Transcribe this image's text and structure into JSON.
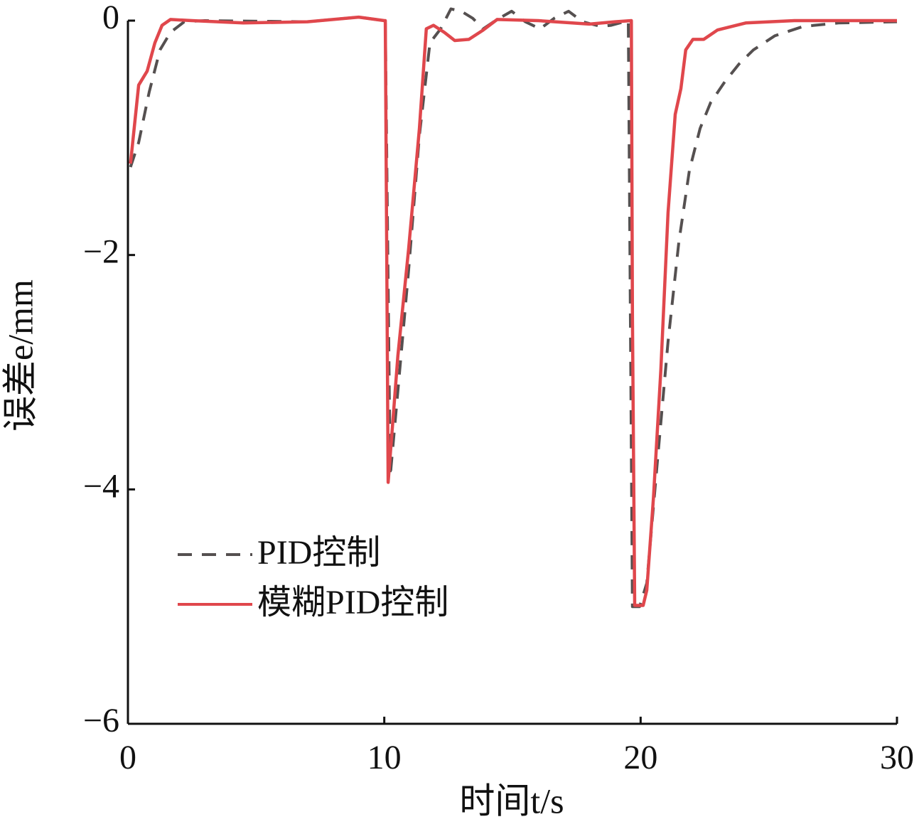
{
  "chart_data": {
    "type": "line",
    "xlabel": "时间t/s",
    "ylabel": "误差e/mm",
    "xlim": [
      0,
      30
    ],
    "ylim": [
      -6,
      0
    ],
    "xticks": [
      0,
      10,
      20,
      30
    ],
    "yticks": [
      {
        "value": 0,
        "label": "0"
      },
      {
        "value": -2,
        "label": "−2"
      },
      {
        "value": -4,
        "label": "−4"
      },
      {
        "value": -6,
        "label": "−6"
      }
    ],
    "series": [
      {
        "name": "PID控制",
        "color": "#555050",
        "dash": true,
        "x": [
          0.1,
          0.42,
          0.83,
          1.25,
          1.66,
          2.2,
          3,
          7,
          9,
          10,
          10.04,
          10.23,
          10.53,
          10.95,
          11.37,
          11.78,
          12.2,
          12.6,
          13.0,
          13.45,
          13.86,
          14.4,
          14.97,
          15.5,
          16.08,
          16.63,
          17.19,
          17.74,
          18.44,
          18.85,
          19.52,
          19.6,
          19.68,
          19.96,
          20.24,
          20.65,
          21.07,
          21.49,
          21.9,
          22.32,
          22.73,
          23.29,
          23.84,
          24.4,
          25.23,
          26.34,
          27.72,
          30
        ],
        "values": [
          -1.25,
          -1.04,
          -0.61,
          -0.25,
          -0.1,
          -0.01,
          0,
          -0.01,
          0.03,
          0,
          0,
          -3.89,
          -3.16,
          -2.13,
          -0.98,
          -0.19,
          -0.07,
          0.1,
          0.08,
          0.02,
          -0.07,
          0.01,
          0.08,
          -0.01,
          -0.07,
          0.02,
          0.08,
          -0.01,
          -0.05,
          -0.04,
          0,
          -2.5,
          -5.0,
          -5.0,
          -4.8,
          -3.77,
          -2.74,
          -1.89,
          -1.28,
          -0.92,
          -0.7,
          -0.52,
          -0.37,
          -0.25,
          -0.13,
          -0.05,
          -0.02,
          -0.01
        ]
      },
      {
        "name": "模糊PID控制",
        "color": "#e0474c",
        "dash": false,
        "x": [
          0.1,
          0.42,
          0.75,
          1.05,
          1.33,
          1.66,
          2.5,
          4.5,
          7,
          9,
          10,
          10.04,
          10.15,
          10.53,
          10.95,
          11.37,
          11.64,
          11.92,
          12.34,
          12.75,
          13.3,
          13.86,
          14.4,
          16,
          18,
          19,
          19.64,
          19.68,
          19.77,
          20.1,
          20.24,
          20.5,
          20.79,
          21.07,
          21.35,
          21.57,
          21.76,
          22.04,
          22.46,
          23.0,
          24.1,
          26,
          30
        ],
        "values": [
          -1.22,
          -0.55,
          -0.43,
          -0.19,
          -0.04,
          0.01,
          0,
          -0.02,
          -0.01,
          0.03,
          0,
          0,
          -3.94,
          -2.86,
          -1.95,
          -0.92,
          -0.07,
          -0.04,
          -0.1,
          -0.17,
          -0.16,
          -0.08,
          0.01,
          0,
          -0.03,
          -0.01,
          0,
          -2.5,
          -4.99,
          -4.99,
          -4.86,
          -4.07,
          -2.98,
          -1.64,
          -0.8,
          -0.58,
          -0.25,
          -0.16,
          -0.16,
          -0.08,
          -0.02,
          0,
          0
        ]
      }
    ]
  }
}
